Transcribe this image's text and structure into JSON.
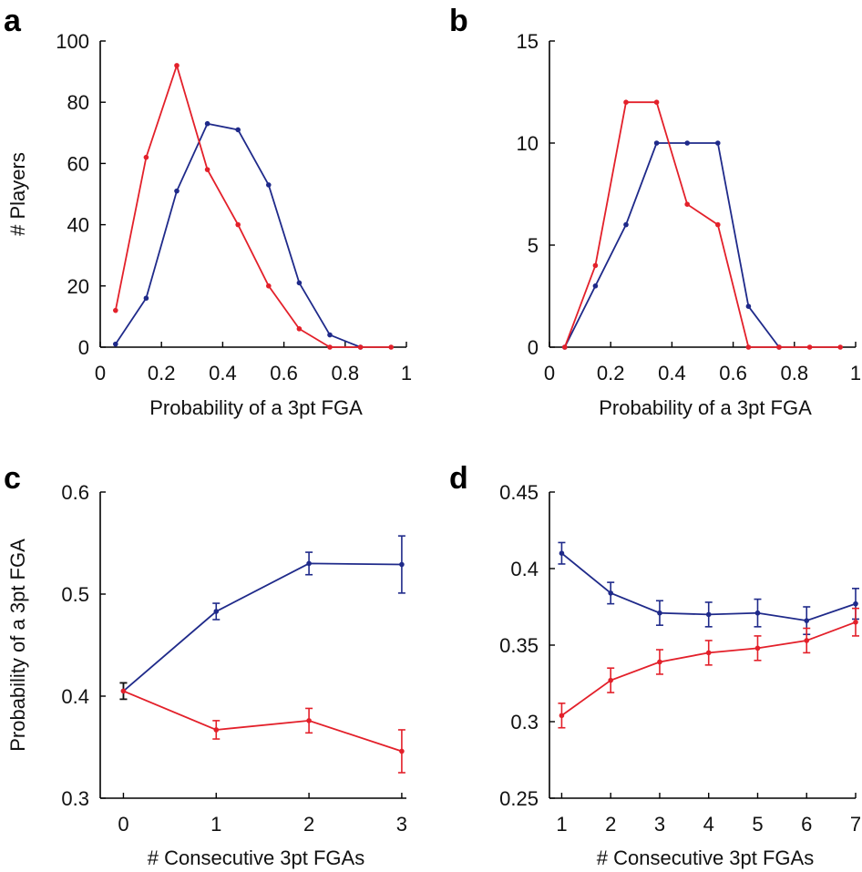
{
  "chart_data": [
    {
      "panel": "a",
      "type": "line",
      "xlabel": "Probability of a 3pt FGA",
      "ylabel": "# Players",
      "xlim": [
        0,
        1
      ],
      "ylim": [
        0,
        100
      ],
      "xticks": [
        "0",
        "0.2",
        "0.4",
        "0.6",
        "0.8",
        "1"
      ],
      "xtick_values": [
        0,
        0.2,
        0.4,
        0.6,
        0.8,
        1
      ],
      "yticks": [
        "0",
        "20",
        "40",
        "60",
        "80",
        "100"
      ],
      "ytick_values": [
        0,
        20,
        40,
        60,
        80,
        100
      ],
      "series": [
        {
          "name": "blue",
          "color": "#1f2a8a",
          "x": [
            0.05,
            0.15,
            0.25,
            0.35,
            0.45,
            0.55,
            0.65,
            0.75,
            0.85
          ],
          "y": [
            1,
            16,
            51,
            73,
            71,
            53,
            21,
            4,
            0
          ]
        },
        {
          "name": "red",
          "color": "#e3202a",
          "x": [
            0.05,
            0.15,
            0.25,
            0.35,
            0.45,
            0.55,
            0.65,
            0.75,
            0.85,
            0.95
          ],
          "y": [
            12,
            62,
            92,
            58,
            40,
            20,
            6,
            0,
            0,
            0
          ]
        }
      ]
    },
    {
      "panel": "b",
      "type": "line",
      "xlabel": "Probability of a 3pt FGA",
      "ylabel": "",
      "xlim": [
        0,
        1
      ],
      "ylim": [
        0,
        15
      ],
      "xticks": [
        "0",
        "0.2",
        "0.4",
        "0.6",
        "0.8",
        "1"
      ],
      "xtick_values": [
        0,
        0.2,
        0.4,
        0.6,
        0.8,
        1
      ],
      "yticks": [
        "0",
        "5",
        "10",
        "15"
      ],
      "ytick_values": [
        0,
        5,
        10,
        15
      ],
      "series": [
        {
          "name": "blue",
          "color": "#1f2a8a",
          "x": [
            0.05,
            0.15,
            0.25,
            0.35,
            0.45,
            0.55,
            0.65,
            0.75
          ],
          "y": [
            0,
            3,
            6,
            10,
            10,
            10,
            2,
            0
          ]
        },
        {
          "name": "red",
          "color": "#e3202a",
          "x": [
            0.05,
            0.15,
            0.25,
            0.35,
            0.45,
            0.55,
            0.65,
            0.75,
            0.85,
            0.95
          ],
          "y": [
            0,
            4,
            12,
            12,
            7,
            6,
            0,
            0,
            0,
            0
          ]
        }
      ]
    },
    {
      "panel": "c",
      "type": "line",
      "xlabel": "# Consecutive 3pt FGAs",
      "ylabel": "Probability of a 3pt FGA",
      "xlim": [
        -0.25,
        3.05
      ],
      "ylim": [
        0.3,
        0.6
      ],
      "xticks": [
        "0",
        "1",
        "2",
        "3"
      ],
      "xtick_values": [
        0,
        1,
        2,
        3
      ],
      "yticks": [
        "0.3",
        "0.4",
        "0.5",
        "0.6"
      ],
      "ytick_values": [
        0.3,
        0.4,
        0.5,
        0.6
      ],
      "series": [
        {
          "name": "blue",
          "color": "#1f2a8a",
          "x": [
            0,
            1,
            2,
            3
          ],
          "y": [
            0.405,
            0.483,
            0.53,
            0.529
          ],
          "err": [
            0.008,
            0.008,
            0.011,
            0.028
          ]
        },
        {
          "name": "red",
          "color": "#e3202a",
          "x": [
            0,
            1,
            2,
            3
          ],
          "y": [
            0.405,
            0.367,
            0.376,
            0.346
          ],
          "err": [
            0.008,
            0.009,
            0.012,
            0.021
          ]
        }
      ]
    },
    {
      "panel": "d",
      "type": "line",
      "xlabel": "# Consecutive 3pt FGAs",
      "ylabel": "",
      "xlim": [
        0.75,
        7.0
      ],
      "ylim": [
        0.25,
        0.45
      ],
      "xticks": [
        "1",
        "2",
        "3",
        "4",
        "5",
        "6",
        "7"
      ],
      "xtick_values": [
        1,
        2,
        3,
        4,
        5,
        6,
        7
      ],
      "yticks": [
        "0.25",
        "0.3",
        "0.35",
        "0.4",
        "0.45"
      ],
      "ytick_values": [
        0.25,
        0.3,
        0.35,
        0.4,
        0.45
      ],
      "series": [
        {
          "name": "blue",
          "color": "#1f2a8a",
          "x": [
            1,
            2,
            3,
            4,
            5,
            6,
            7
          ],
          "y": [
            0.41,
            0.384,
            0.371,
            0.37,
            0.371,
            0.366,
            0.377
          ],
          "err": [
            0.007,
            0.007,
            0.008,
            0.008,
            0.009,
            0.009,
            0.01
          ]
        },
        {
          "name": "red",
          "color": "#e3202a",
          "x": [
            1,
            2,
            3,
            4,
            5,
            6,
            7
          ],
          "y": [
            0.304,
            0.327,
            0.339,
            0.345,
            0.348,
            0.353,
            0.365
          ],
          "err": [
            0.008,
            0.008,
            0.008,
            0.008,
            0.008,
            0.008,
            0.009
          ]
        }
      ]
    }
  ],
  "panels": {
    "a": {
      "letter": "a"
    },
    "b": {
      "letter": "b"
    },
    "c": {
      "letter": "c"
    },
    "d": {
      "letter": "d"
    }
  }
}
